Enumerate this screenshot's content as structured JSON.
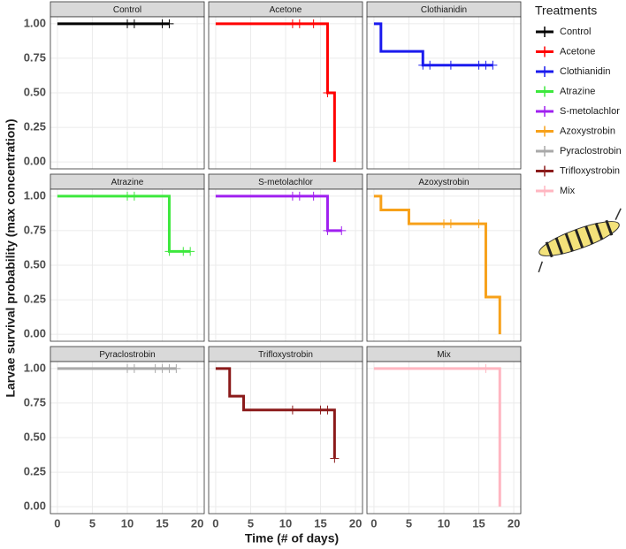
{
  "chart_data": {
    "type": "step",
    "xlabel": "Time (# of days)",
    "ylabel": "Larvae survival probability (max concentration)",
    "legend_title": "Treatments",
    "xlim": [
      -1,
      21
    ],
    "xticks": [
      0,
      5,
      10,
      15,
      20
    ],
    "ylim": [
      -0.05,
      1.05
    ],
    "yticks": [
      {
        "value": 0,
        "label": "0.00"
      },
      {
        "value": 0.25,
        "label": "0.25"
      },
      {
        "value": 0.5,
        "label": "0.50"
      },
      {
        "value": 0.75,
        "label": "0.75"
      },
      {
        "value": 1,
        "label": "1.00"
      }
    ],
    "grid": true,
    "series": [
      {
        "name": "Control",
        "color": "#000000",
        "x": [
          0,
          16
        ],
        "values": [
          1,
          1
        ],
        "censor_x": [
          10,
          11,
          15,
          16
        ],
        "censor_values": [
          1,
          1,
          1,
          1
        ]
      },
      {
        "name": "Acetone",
        "color": "#ff0000",
        "x": [
          0,
          16,
          17
        ],
        "values": [
          1,
          0.5,
          0
        ],
        "censor_x": [
          11,
          12,
          14,
          16
        ],
        "censor_values": [
          1,
          1,
          1,
          0.5
        ]
      },
      {
        "name": "Clothianidin",
        "color": "#1a1aee",
        "x": [
          0,
          1,
          7,
          17
        ],
        "values": [
          1,
          0.8,
          0.7,
          0.7
        ],
        "censor_x": [
          7,
          8,
          11,
          15,
          16,
          17
        ],
        "censor_values": [
          0.7,
          0.7,
          0.7,
          0.7,
          0.7,
          0.7
        ]
      },
      {
        "name": "Atrazine",
        "color": "#3de83d",
        "x": [
          0,
          16,
          19
        ],
        "values": [
          1,
          0.6,
          0.6
        ],
        "censor_x": [
          10,
          11,
          16,
          18,
          19
        ],
        "censor_values": [
          1,
          1,
          0.6,
          0.6,
          0.6
        ]
      },
      {
        "name": "S-metolachlor",
        "color": "#a020f0",
        "x": [
          0,
          16,
          18
        ],
        "values": [
          1,
          0.75,
          0.75
        ],
        "censor_x": [
          11,
          12,
          14,
          16,
          18
        ],
        "censor_values": [
          1,
          1,
          1,
          0.75,
          0.75
        ]
      },
      {
        "name": "Azoxystrobin",
        "color": "#f7a11a",
        "x": [
          0,
          1,
          5,
          16,
          18
        ],
        "values": [
          1,
          0.9,
          0.8,
          0.27,
          0
        ],
        "censor_x": [
          10,
          11,
          15
        ],
        "censor_values": [
          0.8,
          0.8,
          0.8
        ]
      },
      {
        "name": "Pyraclostrobin",
        "color": "#a9a9a9",
        "x": [
          0,
          17
        ],
        "values": [
          1,
          1
        ],
        "censor_x": [
          10,
          11,
          14,
          15,
          16,
          17
        ],
        "censor_values": [
          1,
          1,
          1,
          1,
          1,
          1
        ]
      },
      {
        "name": "Trifloxystrobin",
        "color": "#8b1a1a",
        "x": [
          0,
          2,
          4,
          17
        ],
        "values": [
          1,
          0.8,
          0.7,
          0.35
        ],
        "censor_x": [
          11,
          15,
          16,
          17
        ],
        "censor_values": [
          0.7,
          0.7,
          0.7,
          0.35
        ]
      },
      {
        "name": "Mix",
        "color": "#ffb6c1",
        "x": [
          0,
          18
        ],
        "values": [
          1,
          0
        ],
        "censor_x": [
          16
        ],
        "censor_values": [
          1
        ]
      }
    ]
  }
}
